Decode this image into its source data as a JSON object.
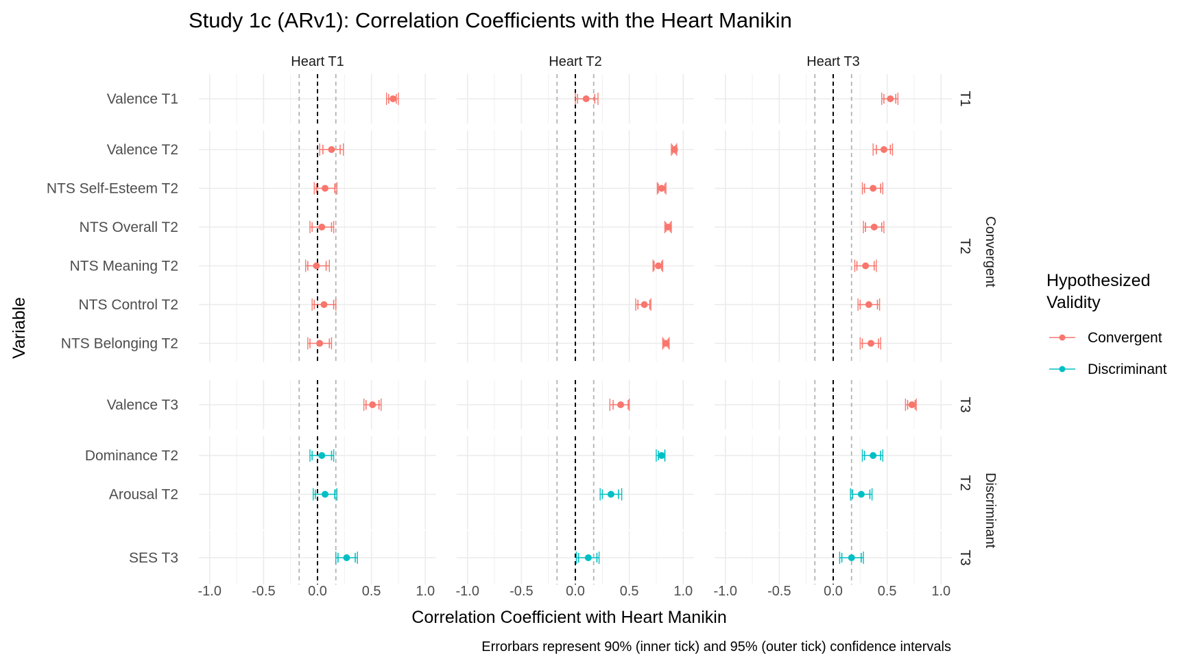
{
  "chart_data": {
    "type": "scatter",
    "title": "Study 1c (ARv1): Correlation Coefficients with the Heart Manikin",
    "xlabel": "Correlation Coefficient with Heart Manikin",
    "ylabel": "Variable",
    "caption": "Errorbars represent 90% (inner tick) and 95% (outer tick) confidence intervals",
    "xlim": [
      -1.1,
      1.1
    ],
    "x_ticks": [
      -1.0,
      -0.5,
      0.0,
      0.5,
      1.0
    ],
    "x_tick_labels": [
      "-1.0",
      "-0.5",
      "0.0",
      "0.5",
      "1.0"
    ],
    "reference_lines": {
      "zero": 0.0,
      "bounds": [
        -0.17,
        0.17
      ]
    },
    "columns": [
      "Heart T1",
      "Heart T2",
      "Heart T3"
    ],
    "outer_strips": [
      "Convergent",
      "Discriminant"
    ],
    "legend": {
      "title": "Hypothesized Validity",
      "placement": "right",
      "entries": [
        {
          "name": "Convergent",
          "color": "#F8766D"
        },
        {
          "name": "Discriminant",
          "color": "#00BFC4"
        }
      ]
    },
    "grid": true,
    "row_groups": [
      {
        "time": "T1",
        "group": "Convergent",
        "color": "#F8766D",
        "rows": [
          {
            "label": "Valence T1",
            "values": [
              {
                "est": 0.7,
                "ci90": [
                  0.66,
                  0.73
                ],
                "ci95": [
                  0.64,
                  0.75
                ]
              },
              {
                "est": 0.1,
                "ci90": [
                  0.02,
                  0.18
                ],
                "ci95": [
                  0.0,
                  0.21
                ]
              },
              {
                "est": 0.53,
                "ci90": [
                  0.47,
                  0.58
                ],
                "ci95": [
                  0.45,
                  0.6
                ]
              }
            ]
          }
        ]
      },
      {
        "time": "T2",
        "group": "Convergent",
        "color": "#F8766D",
        "rows": [
          {
            "label": "Valence T2",
            "values": [
              {
                "est": 0.13,
                "ci90": [
                  0.05,
                  0.21
                ],
                "ci95": [
                  0.02,
                  0.24
                ]
              },
              {
                "est": 0.92,
                "ci90": [
                  0.9,
                  0.93
                ],
                "ci95": [
                  0.89,
                  0.94
                ]
              },
              {
                "est": 0.47,
                "ci90": [
                  0.4,
                  0.53
                ],
                "ci95": [
                  0.37,
                  0.55
                ]
              }
            ]
          },
          {
            "label": "NTS Self-Esteem T2",
            "values": [
              {
                "est": 0.07,
                "ci90": [
                  -0.01,
                  0.16
                ],
                "ci95": [
                  -0.03,
                  0.18
                ]
              },
              {
                "est": 0.8,
                "ci90": [
                  0.77,
                  0.83
                ],
                "ci95": [
                  0.76,
                  0.84
                ]
              },
              {
                "est": 0.37,
                "ci90": [
                  0.29,
                  0.44
                ],
                "ci95": [
                  0.27,
                  0.46
                ]
              }
            ]
          },
          {
            "label": "NTS Overall T2",
            "values": [
              {
                "est": 0.04,
                "ci90": [
                  -0.05,
                  0.13
                ],
                "ci95": [
                  -0.07,
                  0.15
                ]
              },
              {
                "est": 0.86,
                "ci90": [
                  0.84,
                  0.88
                ],
                "ci95": [
                  0.83,
                  0.89
                ]
              },
              {
                "est": 0.38,
                "ci90": [
                  0.3,
                  0.45
                ],
                "ci95": [
                  0.28,
                  0.47
                ]
              }
            ]
          },
          {
            "label": "NTS Meaning T2",
            "values": [
              {
                "est": -0.01,
                "ci90": [
                  -0.09,
                  0.08
                ],
                "ci95": [
                  -0.11,
                  0.11
                ]
              },
              {
                "est": 0.77,
                "ci90": [
                  0.73,
                  0.8
                ],
                "ci95": [
                  0.72,
                  0.81
                ]
              },
              {
                "est": 0.3,
                "ci90": [
                  0.22,
                  0.38
                ],
                "ci95": [
                  0.2,
                  0.4
                ]
              }
            ]
          },
          {
            "label": "NTS Control T2",
            "values": [
              {
                "est": 0.06,
                "ci90": [
                  -0.03,
                  0.15
                ],
                "ci95": [
                  -0.05,
                  0.17
                ]
              },
              {
                "est": 0.64,
                "ci90": [
                  0.58,
                  0.69
                ],
                "ci95": [
                  0.56,
                  0.7
                ]
              },
              {
                "est": 0.33,
                "ci90": [
                  0.25,
                  0.41
                ],
                "ci95": [
                  0.23,
                  0.43
                ]
              }
            ]
          },
          {
            "label": "NTS Belonging T2",
            "values": [
              {
                "est": 0.02,
                "ci90": [
                  -0.07,
                  0.11
                ],
                "ci95": [
                  -0.09,
                  0.13
                ]
              },
              {
                "est": 0.84,
                "ci90": [
                  0.82,
                  0.86
                ],
                "ci95": [
                  0.81,
                  0.87
                ]
              },
              {
                "est": 0.35,
                "ci90": [
                  0.27,
                  0.42
                ],
                "ci95": [
                  0.25,
                  0.44
                ]
              }
            ]
          }
        ]
      },
      {
        "time": "T3",
        "group": "Convergent",
        "color": "#F8766D",
        "rows": [
          {
            "label": "Valence T3",
            "values": [
              {
                "est": 0.51,
                "ci90": [
                  0.45,
                  0.57
                ],
                "ci95": [
                  0.43,
                  0.59
                ]
              },
              {
                "est": 0.42,
                "ci90": [
                  0.35,
                  0.49
                ],
                "ci95": [
                  0.32,
                  0.5
                ]
              },
              {
                "est": 0.73,
                "ci90": [
                  0.69,
                  0.76
                ],
                "ci95": [
                  0.67,
                  0.77
                ]
              }
            ]
          }
        ]
      },
      {
        "time": "T2",
        "group": "Discriminant",
        "color": "#00BFC4",
        "rows": [
          {
            "label": "Dominance T2",
            "values": [
              {
                "est": 0.04,
                "ci90": [
                  -0.05,
                  0.13
                ],
                "ci95": [
                  -0.07,
                  0.15
                ]
              },
              {
                "est": 0.8,
                "ci90": [
                  0.77,
                  0.83
                ],
                "ci95": [
                  0.75,
                  0.83
                ]
              },
              {
                "est": 0.37,
                "ci90": [
                  0.29,
                  0.44
                ],
                "ci95": [
                  0.27,
                  0.46
                ]
              }
            ]
          },
          {
            "label": "Arousal T2",
            "values": [
              {
                "est": 0.07,
                "ci90": [
                  -0.02,
                  0.16
                ],
                "ci95": [
                  -0.04,
                  0.18
                ]
              },
              {
                "est": 0.33,
                "ci90": [
                  0.25,
                  0.4
                ],
                "ci95": [
                  0.23,
                  0.43
                ]
              },
              {
                "est": 0.26,
                "ci90": [
                  0.18,
                  0.34
                ],
                "ci95": [
                  0.16,
                  0.36
                ]
              }
            ]
          }
        ]
      },
      {
        "time": "T3",
        "group": "Discriminant",
        "color": "#00BFC4",
        "rows": [
          {
            "label": "SES T3",
            "values": [
              {
                "est": 0.27,
                "ci90": [
                  0.19,
                  0.35
                ],
                "ci95": [
                  0.17,
                  0.37
                ]
              },
              {
                "est": 0.12,
                "ci90": [
                  0.03,
                  0.2
                ],
                "ci95": [
                  0.01,
                  0.22
                ]
              },
              {
                "est": 0.17,
                "ci90": [
                  0.08,
                  0.26
                ],
                "ci95": [
                  0.06,
                  0.28
                ]
              }
            ]
          }
        ]
      }
    ]
  }
}
